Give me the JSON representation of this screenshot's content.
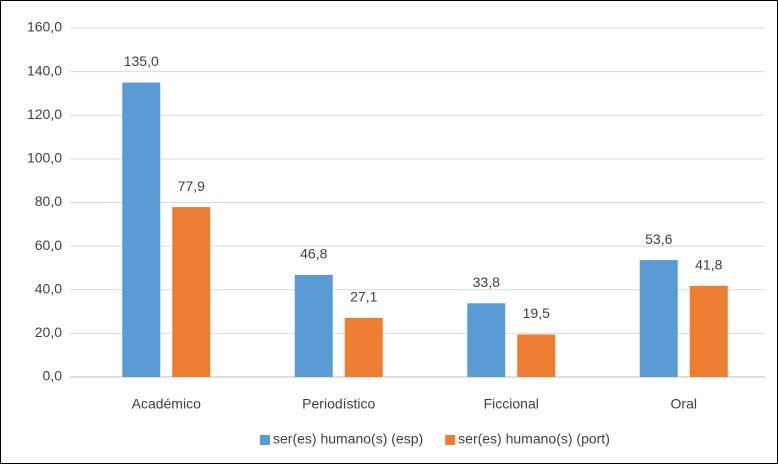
{
  "chart_data": {
    "type": "bar",
    "categories": [
      "Académico",
      "Periodístico",
      "Ficcional",
      "Oral"
    ],
    "series": [
      {
        "name": "ser(es) humano(s) (esp)",
        "color": "#5b9bd5",
        "values": [
          135.0,
          46.8,
          33.8,
          53.6
        ],
        "value_labels": [
          "135,0",
          "46,8",
          "33,8",
          "53,6"
        ]
      },
      {
        "name": "ser(es) humano(s) (port)",
        "color": "#ed7d31",
        "values": [
          77.9,
          27.1,
          19.5,
          41.8
        ],
        "value_labels": [
          "77,9",
          "27,1",
          "19,5",
          "41,8"
        ]
      }
    ],
    "ylim": [
      0,
      160
    ],
    "yticks": [
      {
        "value": 0,
        "label": "0,0"
      },
      {
        "value": 20,
        "label": "20,0"
      },
      {
        "value": 40,
        "label": "40,0"
      },
      {
        "value": 60,
        "label": "60,0"
      },
      {
        "value": 80,
        "label": "80,0"
      },
      {
        "value": 100,
        "label": "100,0"
      },
      {
        "value": 120,
        "label": "120,0"
      },
      {
        "value": 140,
        "label": "140,0"
      },
      {
        "value": 160,
        "label": "160,0"
      }
    ],
    "grid": true,
    "legend": "bottom"
  }
}
